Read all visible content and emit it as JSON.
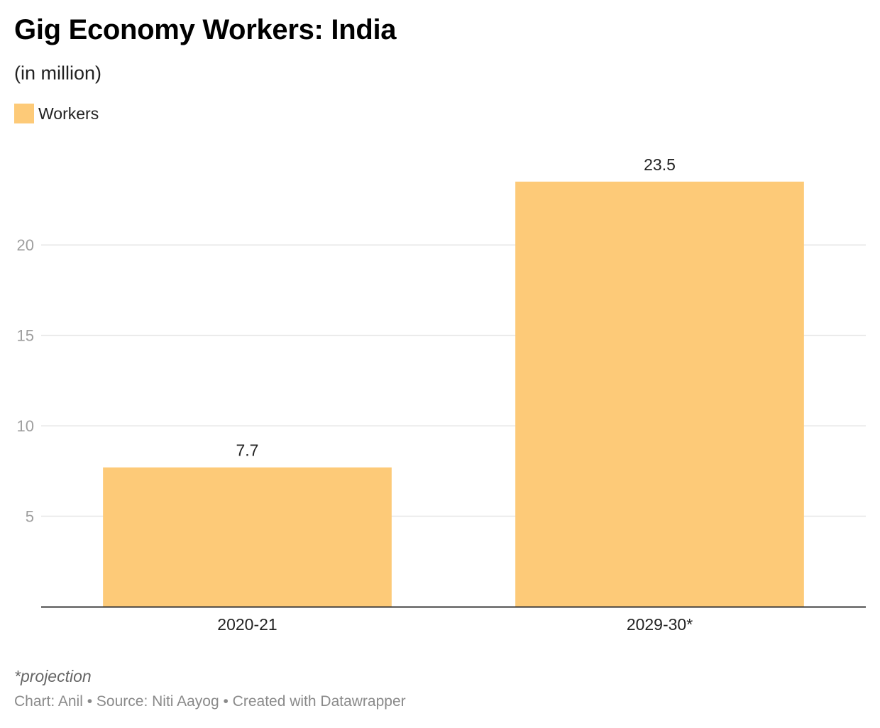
{
  "chart_data": {
    "type": "bar",
    "title": "Gig Economy Workers: India",
    "subtitle": "(in million)",
    "categories": [
      "2020-21",
      "2029-30*"
    ],
    "series": [
      {
        "name": "Workers",
        "values": [
          7.7,
          23.5
        ]
      }
    ],
    "ylim": [
      0,
      23.5
    ],
    "yticks": [
      5,
      10,
      15,
      20
    ],
    "grid": true,
    "legend_position": "top-left",
    "note": "*projection",
    "colors": {
      "bar": "#fdca78",
      "grid": "#e6e6e6",
      "axis": "#333333"
    }
  },
  "footer": {
    "text": "Chart: Anil • Source: Niti Aayog • Created with Datawrapper"
  }
}
